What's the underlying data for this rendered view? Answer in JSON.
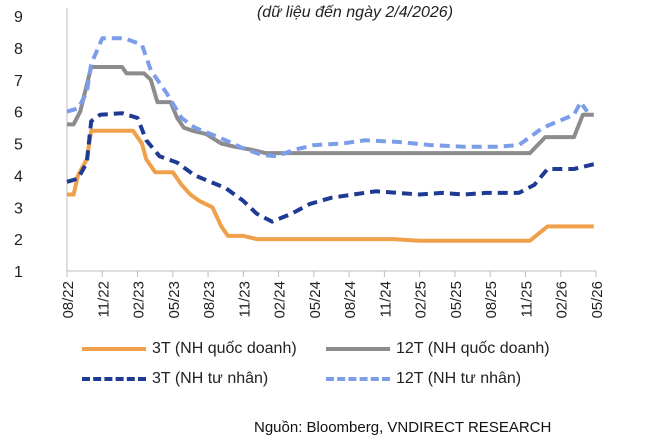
{
  "subtitle": "(dữ liệu đến ngày 2/4/2026)",
  "source": "Nguồn: Bloomberg, VNDIRECT RESEARCH",
  "chart_data": {
    "type": "line",
    "x_ticks": [
      "08/22",
      "11/22",
      "02/23",
      "05/23",
      "08/23",
      "11/23",
      "02/24",
      "05/24",
      "08/24",
      "11/24",
      "02/25",
      "05/25",
      "08/25",
      "11/25",
      "02/26",
      "05/26"
    ],
    "ylim": [
      1,
      9
    ],
    "y_ticks": [
      1,
      2,
      3,
      4,
      5,
      6,
      7,
      8,
      9
    ],
    "grid": false,
    "legend_placement": "bottom",
    "series": [
      {
        "name": "3T (NH quốc doanh)",
        "color": "#F0A04B",
        "dash": "solid",
        "values": [
          [
            0,
            3.4
          ],
          [
            0.3,
            3.4
          ],
          [
            0.5,
            4.0
          ],
          [
            0.9,
            4.5
          ],
          [
            1.1,
            5.4
          ],
          [
            2.4,
            5.4
          ],
          [
            3.0,
            5.4
          ],
          [
            3.4,
            5.0
          ],
          [
            3.6,
            4.5
          ],
          [
            4.0,
            4.1
          ],
          [
            4.8,
            4.1
          ],
          [
            5.2,
            3.7
          ],
          [
            5.6,
            3.4
          ],
          [
            6.0,
            3.2
          ],
          [
            6.6,
            3.0
          ],
          [
            7.0,
            2.4
          ],
          [
            7.3,
            2.1
          ],
          [
            8.0,
            2.1
          ],
          [
            8.6,
            2.0
          ],
          [
            10.0,
            2.0
          ],
          [
            12.0,
            2.0
          ],
          [
            14.8,
            2.0
          ],
          [
            16.0,
            1.95
          ],
          [
            18.0,
            1.95
          ],
          [
            19.0,
            1.95
          ],
          [
            20.3,
            1.95
          ],
          [
            20.6,
            1.95
          ],
          [
            21.0,
            1.95
          ],
          [
            21.8,
            2.4
          ],
          [
            23.9,
            2.4
          ]
        ]
      },
      {
        "name": "12T (NH quốc doanh)",
        "color": "#8C8C8C",
        "dash": "solid",
        "values": [
          [
            0,
            5.6
          ],
          [
            0.3,
            5.6
          ],
          [
            0.6,
            6.0
          ],
          [
            1.1,
            7.4
          ],
          [
            2.5,
            7.4
          ],
          [
            2.7,
            7.2
          ],
          [
            3.5,
            7.2
          ],
          [
            3.8,
            7.0
          ],
          [
            4.1,
            6.3
          ],
          [
            4.7,
            6.3
          ],
          [
            5.0,
            5.8
          ],
          [
            5.3,
            5.5
          ],
          [
            5.7,
            5.4
          ],
          [
            6.3,
            5.3
          ],
          [
            7.0,
            5.0
          ],
          [
            7.6,
            4.9
          ],
          [
            8.4,
            4.8
          ],
          [
            9.0,
            4.7
          ],
          [
            11.0,
            4.7
          ],
          [
            14.0,
            4.7
          ],
          [
            17.0,
            4.7
          ],
          [
            20.4,
            4.7
          ],
          [
            21.0,
            4.7
          ],
          [
            21.7,
            5.2
          ],
          [
            23.0,
            5.2
          ],
          [
            23.4,
            5.9
          ],
          [
            23.9,
            5.9
          ]
        ]
      },
      {
        "name": "3T (NH tư nhân)",
        "color": "#1F3A93",
        "dash": "dashed",
        "values": [
          [
            0,
            3.8
          ],
          [
            0.5,
            3.9
          ],
          [
            0.9,
            4.4
          ],
          [
            1.1,
            5.7
          ],
          [
            1.5,
            5.9
          ],
          [
            2.5,
            5.95
          ],
          [
            3.2,
            5.8
          ],
          [
            3.6,
            5.1
          ],
          [
            4.2,
            4.6
          ],
          [
            5.0,
            4.4
          ],
          [
            5.8,
            4.0
          ],
          [
            6.5,
            3.8
          ],
          [
            7.2,
            3.6
          ],
          [
            8.0,
            3.2
          ],
          [
            8.6,
            2.8
          ],
          [
            9.3,
            2.55
          ],
          [
            10.2,
            2.8
          ],
          [
            11.0,
            3.1
          ],
          [
            12.0,
            3.3
          ],
          [
            13.0,
            3.4
          ],
          [
            14.0,
            3.5
          ],
          [
            15.0,
            3.45
          ],
          [
            16.0,
            3.4
          ],
          [
            17.0,
            3.45
          ],
          [
            18.0,
            3.4
          ],
          [
            19.0,
            3.45
          ],
          [
            20.5,
            3.45
          ],
          [
            21.2,
            3.7
          ],
          [
            21.8,
            4.2
          ],
          [
            23.0,
            4.2
          ],
          [
            23.9,
            4.35
          ]
        ]
      },
      {
        "name": "12T (NH tư nhân)",
        "color": "#7C9EEA",
        "dash": "dashed",
        "values": [
          [
            0,
            6.0
          ],
          [
            0.5,
            6.1
          ],
          [
            0.9,
            6.6
          ],
          [
            1.1,
            7.5
          ],
          [
            1.6,
            8.3
          ],
          [
            2.6,
            8.3
          ],
          [
            3.4,
            8.1
          ],
          [
            3.8,
            7.3
          ],
          [
            4.5,
            6.6
          ],
          [
            5.2,
            5.8
          ],
          [
            5.8,
            5.5
          ],
          [
            6.5,
            5.3
          ],
          [
            7.2,
            5.1
          ],
          [
            8.0,
            4.85
          ],
          [
            8.8,
            4.65
          ],
          [
            9.5,
            4.6
          ],
          [
            10.3,
            4.8
          ],
          [
            11.2,
            4.95
          ],
          [
            12.5,
            5.0
          ],
          [
            13.5,
            5.1
          ],
          [
            15.0,
            5.05
          ],
          [
            16.5,
            4.95
          ],
          [
            18.0,
            4.9
          ],
          [
            19.5,
            4.9
          ],
          [
            20.5,
            4.95
          ],
          [
            21.0,
            5.2
          ],
          [
            21.6,
            5.5
          ],
          [
            22.3,
            5.7
          ],
          [
            23.0,
            5.9
          ],
          [
            23.3,
            6.3
          ],
          [
            23.6,
            6.0
          ]
        ]
      }
    ]
  }
}
